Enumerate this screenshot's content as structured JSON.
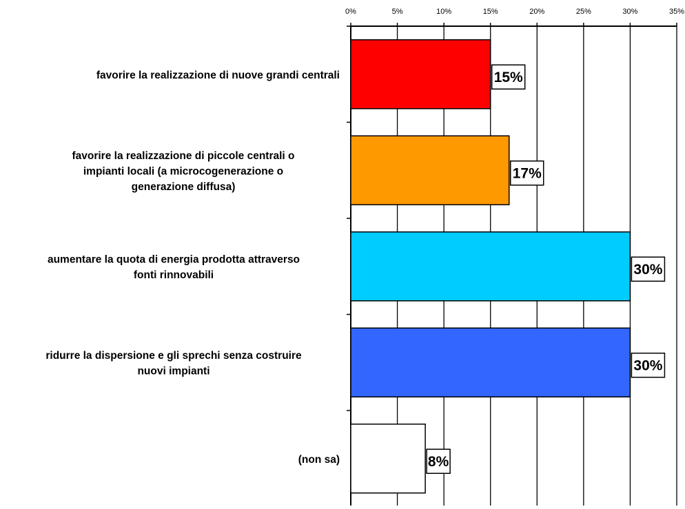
{
  "chart_data": {
    "type": "bar",
    "orientation": "horizontal",
    "title": "",
    "xlabel": "",
    "ylabel": "",
    "xlim": [
      0,
      35
    ],
    "x_ticks": [
      "0%",
      "5%",
      "10%",
      "15%",
      "20%",
      "25%",
      "30%",
      "35%"
    ],
    "x_axis_position": "top",
    "grid": "vertical",
    "legend": "none",
    "categories": [
      [
        "favorire la realizzazione di nuove grandi centrali"
      ],
      [
        "favorire la realizzazione di piccole centrali o",
        "impianti locali (a microcogenerazione o",
        "generazione diffusa)"
      ],
      [
        "aumentare la quota di energia prodotta attraverso",
        "fonti rinnovabili"
      ],
      [
        "ridurre la dispersione e gli sprechi senza costruire",
        "nuovi impianti"
      ],
      [
        "(non sa)"
      ]
    ],
    "values": [
      15,
      17,
      30,
      30,
      8
    ],
    "data_labels": [
      "15%",
      "17%",
      "30%",
      "30%",
      "8%"
    ],
    "colors": [
      "#ff0000",
      "#ff9900",
      "#00ccff",
      "#3366ff",
      "#ffffff"
    ]
  }
}
